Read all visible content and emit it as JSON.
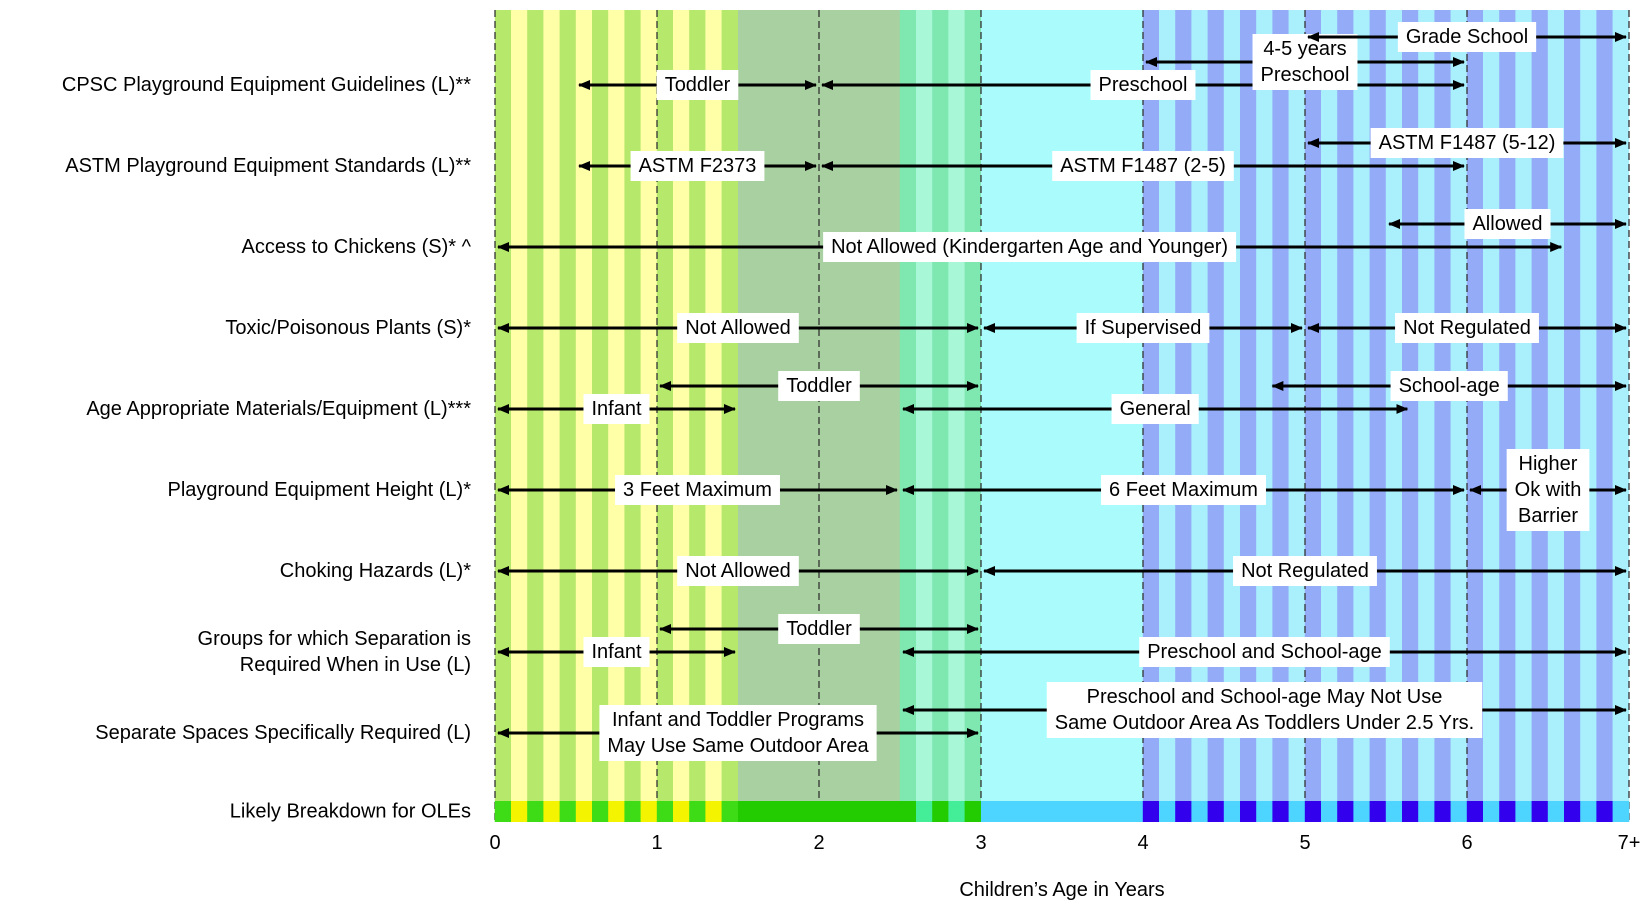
{
  "chart_data": {
    "type": "range-timeline",
    "xlabel": "Children’s Age in Years",
    "xlim": [
      0,
      7
    ],
    "x_ticks": [
      {
        "value": 0,
        "label": "0"
      },
      {
        "value": 1,
        "label": "1"
      },
      {
        "value": 2,
        "label": "2"
      },
      {
        "value": 3,
        "label": "3"
      },
      {
        "value": 4,
        "label": "4"
      },
      {
        "value": 5,
        "label": "5"
      },
      {
        "value": 6,
        "label": "6"
      },
      {
        "value": 7,
        "label": "7+"
      }
    ],
    "background_zones": [
      {
        "from": 0,
        "to": 1.5,
        "pattern": "stripes",
        "colors": [
          "#b6e86b",
          "#ffffa8"
        ]
      },
      {
        "from": 1.5,
        "to": 2.5,
        "pattern": "solid",
        "colors": [
          "#a9d0a0"
        ]
      },
      {
        "from": 2.5,
        "to": 3,
        "pattern": "stripes",
        "colors": [
          "#7ee8b0",
          "#a8f8d8"
        ]
      },
      {
        "from": 3,
        "to": 4,
        "pattern": "solid",
        "colors": [
          "#aafcfc"
        ]
      },
      {
        "from": 4,
        "to": 7,
        "pattern": "stripes",
        "colors": [
          "#94acf8",
          "#aaf0fc"
        ]
      }
    ],
    "breakdown_bar": {
      "label": "Likely Breakdown for OLEs",
      "segments": [
        {
          "from": 0,
          "to": 1.5,
          "pattern": "stripes",
          "colors": [
            "#3ddc16",
            "#f4f400"
          ]
        },
        {
          "from": 1.5,
          "to": 2.5,
          "pattern": "solid",
          "colors": [
            "#22cc00"
          ]
        },
        {
          "from": 2.5,
          "to": 3,
          "pattern": "stripes",
          "colors": [
            "#22cc00",
            "#44ee99"
          ]
        },
        {
          "from": 3,
          "to": 4,
          "pattern": "solid",
          "colors": [
            "#4dd4ff"
          ]
        },
        {
          "from": 4,
          "to": 7,
          "pattern": "stripes",
          "colors": [
            "#3300ee",
            "#4dd4ff"
          ]
        }
      ]
    },
    "rows": [
      {
        "label": [
          "CPSC Playground Equipment Guidelines (L)**"
        ],
        "ranges": [
          {
            "from": 0.5,
            "to": 2,
            "text": [
              "Toddler"
            ],
            "level": "main"
          },
          {
            "from": 2,
            "to": 6,
            "text": [
              "Preschool"
            ],
            "level": "main"
          },
          {
            "from": 4,
            "to": 6,
            "text": [
              "4-5 years",
              "Preschool"
            ],
            "level": "upper"
          },
          {
            "from": 5,
            "to": 7,
            "text": [
              "Grade School"
            ],
            "level": "top"
          }
        ]
      },
      {
        "label": [
          "ASTM Playground Equipment Standards (L)**"
        ],
        "ranges": [
          {
            "from": 0.5,
            "to": 2,
            "text": [
              "ASTM F2373"
            ],
            "level": "main"
          },
          {
            "from": 2,
            "to": 6,
            "text": [
              "ASTM F1487 (2-5)"
            ],
            "level": "main"
          },
          {
            "from": 5,
            "to": 7,
            "text": [
              "ASTM F1487 (5-12)"
            ],
            "level": "upper"
          }
        ]
      },
      {
        "label": [
          "Access to Chickens (S)* ^"
        ],
        "ranges": [
          {
            "from": 0,
            "to": 6.6,
            "text": [
              "Not Allowed (Kindergarten Age and Younger)"
            ],
            "level": "main"
          },
          {
            "from": 5.5,
            "to": 7,
            "text": [
              "Allowed"
            ],
            "level": "upper"
          }
        ]
      },
      {
        "label": [
          "Toxic/Poisonous Plants (S)*"
        ],
        "ranges": [
          {
            "from": 0,
            "to": 3,
            "text": [
              "Not Allowed"
            ],
            "level": "main"
          },
          {
            "from": 3,
            "to": 5,
            "text": [
              "If Supervised"
            ],
            "level": "main"
          },
          {
            "from": 5,
            "to": 7,
            "text": [
              "Not Regulated"
            ],
            "level": "main"
          }
        ]
      },
      {
        "label": [
          "Age Appropriate Materials/Equipment (L)***"
        ],
        "ranges": [
          {
            "from": 0,
            "to": 1.5,
            "text": [
              "Infant"
            ],
            "level": "main"
          },
          {
            "from": 1,
            "to": 3,
            "text": [
              "Toddler"
            ],
            "level": "upper"
          },
          {
            "from": 2.5,
            "to": 5.65,
            "text": [
              "General"
            ],
            "level": "main"
          },
          {
            "from": 4.78,
            "to": 7,
            "text": [
              "School-age"
            ],
            "level": "upper"
          }
        ]
      },
      {
        "label": [
          "Playground Equipment Height (L)*"
        ],
        "ranges": [
          {
            "from": 0,
            "to": 2.5,
            "text": [
              "3 Feet Maximum"
            ],
            "level": "main"
          },
          {
            "from": 2.5,
            "to": 6,
            "text": [
              "6 Feet Maximum"
            ],
            "level": "main"
          },
          {
            "from": 6,
            "to": 7,
            "text": [
              "Higher",
              "Ok with",
              "Barrier"
            ],
            "level": "main"
          }
        ]
      },
      {
        "label": [
          "Choking Hazards (L)*"
        ],
        "ranges": [
          {
            "from": 0,
            "to": 3,
            "text": [
              "Not Allowed"
            ],
            "level": "main"
          },
          {
            "from": 3,
            "to": 7,
            "text": [
              "Not Regulated"
            ],
            "level": "main"
          }
        ]
      },
      {
        "label": [
          "Groups for which Separation is",
          "Required When in Use (L)"
        ],
        "ranges": [
          {
            "from": 0,
            "to": 1.5,
            "text": [
              "Infant"
            ],
            "level": "main"
          },
          {
            "from": 1,
            "to": 3,
            "text": [
              "Toddler"
            ],
            "level": "upper"
          },
          {
            "from": 2.5,
            "to": 7,
            "text": [
              "Preschool and School-age"
            ],
            "level": "main"
          }
        ]
      },
      {
        "label": [
          "Separate Spaces Specifically Required (L)"
        ],
        "ranges": [
          {
            "from": 0,
            "to": 3,
            "text": [
              "Infant and Toddler Programs",
              "May Use Same Outdoor Area"
            ],
            "level": "main"
          },
          {
            "from": 2.5,
            "to": 7,
            "text": [
              "Preschool and School-age May Not Use",
              "Same Outdoor Area As Toddlers Under 2.5 Yrs."
            ],
            "level": "upper"
          }
        ]
      }
    ]
  }
}
